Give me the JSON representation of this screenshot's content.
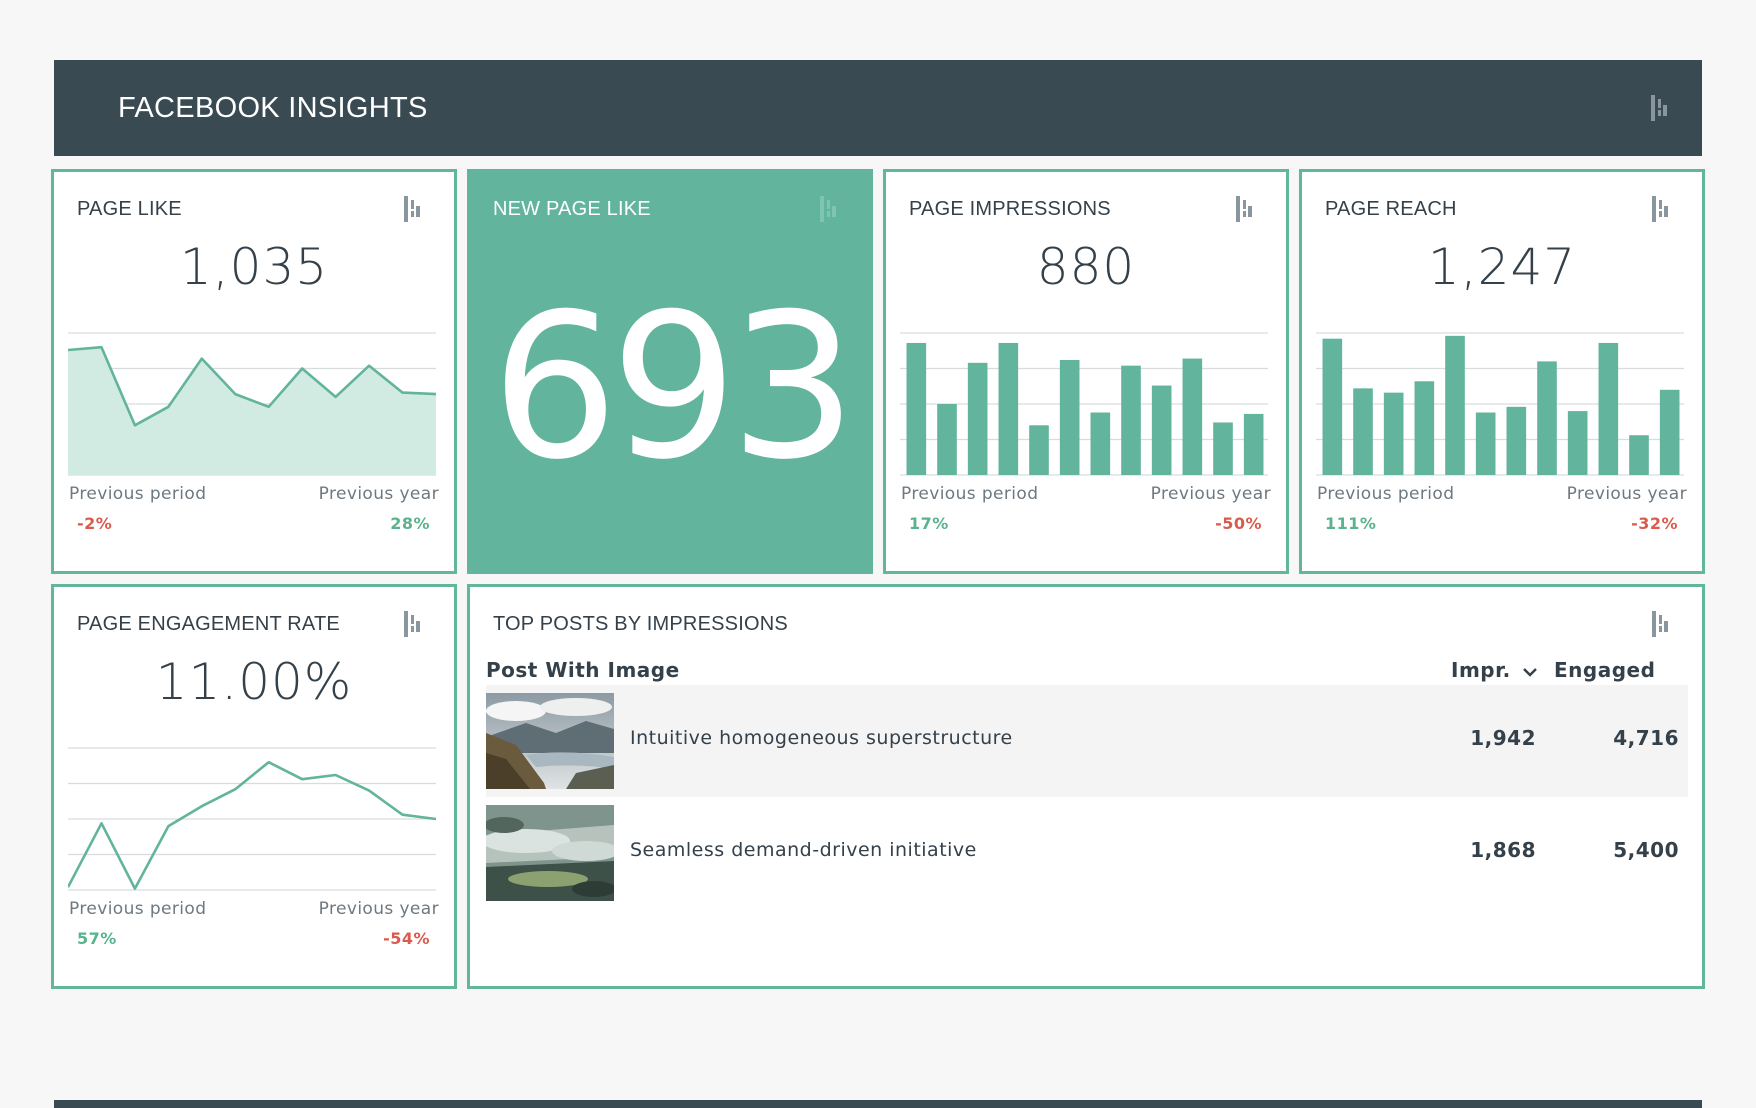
{
  "header": {
    "title": "FACEBOOK INSIGHTS",
    "icon": "dashthis-logo-icon"
  },
  "colors": {
    "accent": "#62b49c",
    "header_bg": "#3a4a53",
    "positive": "#59b38d",
    "negative": "#d95b4d",
    "text": "#34404a"
  },
  "cards": {
    "page_like": {
      "title": "PAGE LIKE",
      "value": "1,035",
      "prev_period_label": "Previous period",
      "prev_period_value": "-2%",
      "prev_year_label": "Previous year",
      "prev_year_value": "28%"
    },
    "new_page_like": {
      "title": "NEW PAGE LIKE",
      "value": "693"
    },
    "page_impressions": {
      "title": "PAGE IMPRESSIONS",
      "value": "880",
      "prev_period_label": "Previous period",
      "prev_period_value": "17%",
      "prev_year_label": "Previous year",
      "prev_year_value": "-50%"
    },
    "page_reach": {
      "title": "PAGE REACH",
      "value": "1,247",
      "prev_period_label": "Previous period",
      "prev_period_value": "111%",
      "prev_year_label": "Previous year",
      "prev_year_value": "-32%"
    },
    "engagement": {
      "title": "PAGE ENGAGEMENT RATE",
      "value": "11.00%",
      "prev_period_label": "Previous period",
      "prev_period_value": "57%",
      "prev_year_label": "Previous year",
      "prev_year_value": "-54%"
    }
  },
  "top_posts": {
    "title": "TOP POSTS BY IMPRESSIONS",
    "col_post": "Post With Image",
    "col_impr": "Impr.",
    "col_engaged": "Engaged",
    "rows": [
      {
        "title": "Intuitive homogeneous superstructure",
        "impr": "1,942",
        "engaged": "4,716"
      },
      {
        "title": "Seamless demand-driven initiative",
        "impr": "1,868",
        "engaged": "5,400"
      }
    ]
  },
  "chart_data": [
    {
      "type": "area",
      "title": "PAGE LIKE",
      "values": [
        88,
        90,
        35,
        48,
        82,
        57,
        48,
        75,
        55,
        77,
        58,
        57
      ],
      "ylim": [
        0,
        100
      ],
      "grid": true
    },
    {
      "type": "bar",
      "title": "PAGE IMPRESSIONS",
      "values": [
        93,
        50,
        79,
        93,
        35,
        81,
        44,
        77,
        63,
        82,
        37,
        43
      ],
      "ylim": [
        0,
        100
      ],
      "grid": true
    },
    {
      "type": "bar",
      "title": "PAGE REACH",
      "values": [
        96,
        61,
        58,
        66,
        98,
        44,
        48,
        80,
        45,
        93,
        28,
        60
      ],
      "ylim": [
        0,
        100
      ],
      "grid": true
    },
    {
      "type": "line",
      "title": "PAGE ENGAGEMENT RATE",
      "values": [
        2,
        47,
        1,
        45,
        59,
        71,
        90,
        78,
        81,
        70,
        53,
        50
      ],
      "ylim": [
        0,
        100
      ],
      "grid": true
    }
  ]
}
